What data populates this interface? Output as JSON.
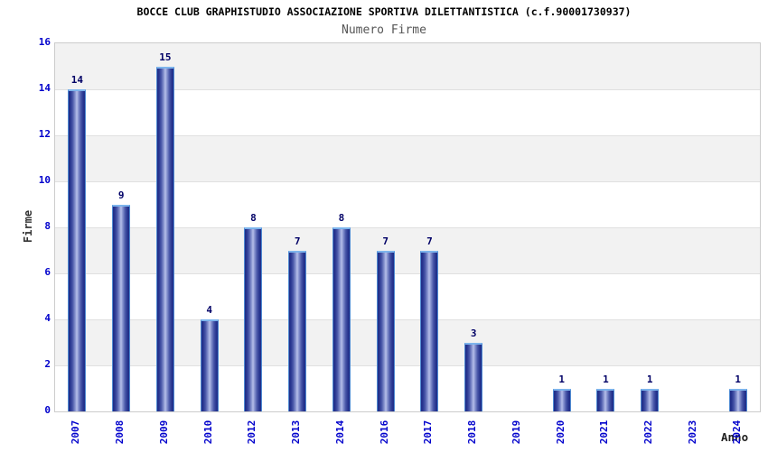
{
  "chart_data": {
    "type": "bar",
    "title": "BOCCE CLUB GRAPHISTUDIO ASSOCIAZIONE SPORTIVA DILETTANTISTICA (c.f.90001730937)",
    "subtitle": "Numero Firme",
    "xlabel": "Anno",
    "ylabel": "Firme",
    "categories": [
      "2007",
      "2008",
      "2009",
      "2010",
      "2012",
      "2013",
      "2014",
      "2016",
      "2017",
      "2018",
      "2019",
      "2020",
      "2021",
      "2022",
      "2023",
      "2024"
    ],
    "values": [
      14,
      9,
      15,
      4,
      8,
      7,
      8,
      7,
      7,
      3,
      0,
      1,
      1,
      1,
      0,
      1
    ],
    "ylim": [
      0,
      16
    ],
    "ytick_step": 2,
    "legend": "none",
    "grid": "horizontal-bands-2-units",
    "colors": {
      "bar_dark": "#1f2d87",
      "bar_light": "#b7c0ea",
      "bar_border": "#4f8ad2",
      "bar_top_cap": "#7db4ec",
      "tick_label": "#0000cc",
      "value_label": "#000066",
      "axis_title": "#333333",
      "band_gray": "#f2f2f2",
      "plot_border": "#cccccc"
    }
  }
}
